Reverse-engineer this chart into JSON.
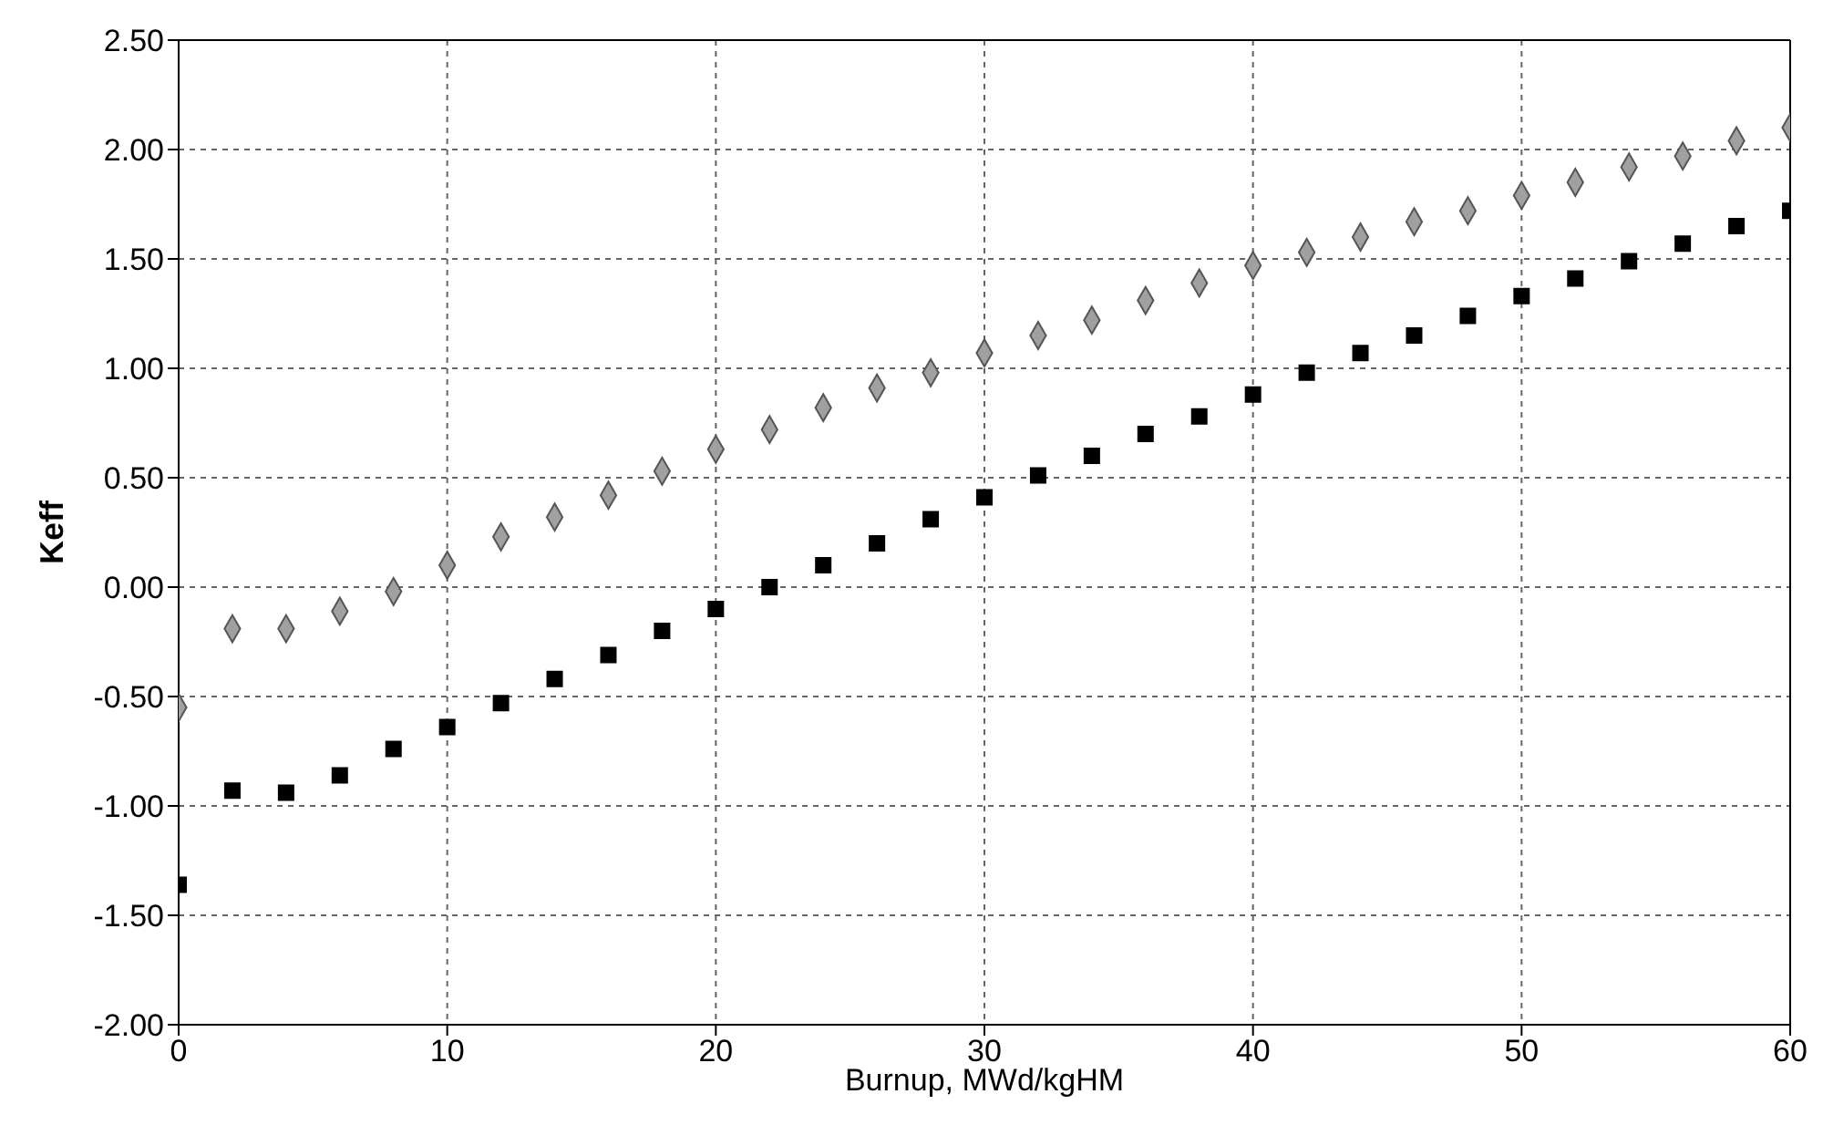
{
  "chart_data": {
    "type": "scatter",
    "xlabel": "Burnup, MWd/kgHM",
    "ylabel": "Keff",
    "xlim": [
      0,
      60
    ],
    "xticks": [
      0,
      10,
      20,
      30,
      40,
      50,
      60
    ],
    "ylim": [
      -2,
      2.5
    ],
    "yticks": [
      {
        "value": -2,
        "label": "-2.00"
      },
      {
        "value": -1.5,
        "label": "-1.50"
      },
      {
        "value": -1,
        "label": "-1.00"
      },
      {
        "value": -0.5,
        "label": "-0.50"
      },
      {
        "value": 0,
        "label": "0.00"
      },
      {
        "value": 0.5,
        "label": "0.50"
      },
      {
        "value": 1,
        "label": "1.00"
      },
      {
        "value": 1.5,
        "label": "1.50"
      },
      {
        "value": 2,
        "label": "2.00"
      },
      {
        "value": 2.5,
        "label": "2.50"
      }
    ],
    "grid": true,
    "x": [
      0,
      2,
      4,
      6,
      8,
      10,
      12,
      14,
      16,
      18,
      20,
      22,
      24,
      26,
      28,
      30,
      32,
      34,
      36,
      38,
      40,
      42,
      44,
      46,
      48,
      50,
      52,
      54,
      56,
      58,
      60
    ],
    "series": [
      {
        "color": "#a0a0a0",
        "marker": "diamond",
        "values": [
          -0.55,
          -0.19,
          -0.19,
          -0.11,
          -0.02,
          0.1,
          0.23,
          0.32,
          0.42,
          0.53,
          0.63,
          0.72,
          0.82,
          0.91,
          0.98,
          1.07,
          1.15,
          1.22,
          1.31,
          1.39,
          1.47,
          1.53,
          1.6,
          1.67,
          1.72,
          1.79,
          1.85,
          1.92,
          1.97,
          2.04,
          2.1
        ]
      },
      {
        "color": "#000000",
        "marker": "square",
        "values": [
          -1.36,
          -0.93,
          -0.94,
          -0.86,
          -0.74,
          -0.64,
          -0.53,
          -0.42,
          -0.31,
          -0.2,
          -0.1,
          0,
          0.1,
          0.2,
          0.31,
          0.41,
          0.51,
          0.6,
          0.7,
          0.78,
          0.88,
          0.98,
          1.07,
          1.15,
          1.24,
          1.33,
          1.41,
          1.49,
          1.57,
          1.65,
          1.72
        ]
      }
    ]
  }
}
